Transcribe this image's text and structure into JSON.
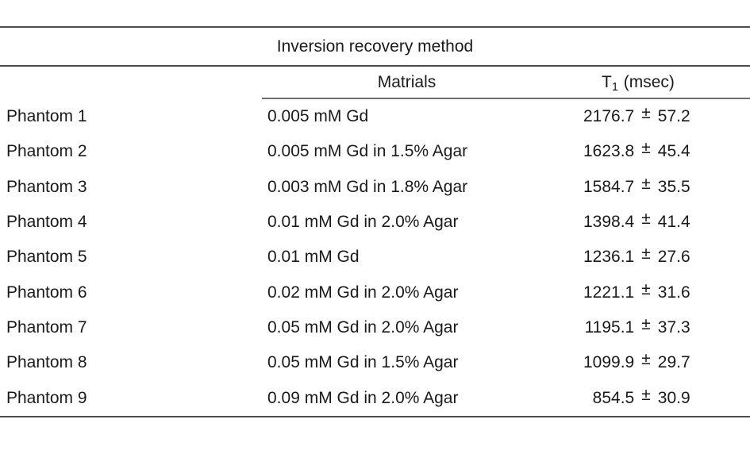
{
  "figure": {
    "title": "Inversion recovery method",
    "columns": {
      "materials": "Matrials",
      "t1_prefix": "T",
      "t1_sub": "1",
      "t1_suffix": "(msec)"
    },
    "plus_minus": "±",
    "rows": [
      {
        "phantom": "Phantom 1",
        "material": "0.005 mM Gd",
        "value": "2176.7",
        "error": "57.2"
      },
      {
        "phantom": "Phantom 2",
        "material": "0.005 mM Gd in 1.5% Agar",
        "value": "1623.8",
        "error": "45.4"
      },
      {
        "phantom": "Phantom 3",
        "material": "0.003 mM Gd in 1.8% Agar",
        "value": "1584.7",
        "error": "35.5"
      },
      {
        "phantom": "Phantom 4",
        "material": "0.01 mM Gd in 2.0% Agar",
        "value": "1398.4",
        "error": "41.4"
      },
      {
        "phantom": "Phantom 5",
        "material": "0.01 mM Gd",
        "value": "1236.1",
        "error": "27.6"
      },
      {
        "phantom": "Phantom 6",
        "material": "0.02 mM Gd in 2.0% Agar",
        "value": "1221.1",
        "error": "31.6"
      },
      {
        "phantom": "Phantom 7",
        "material": "0.05 mM Gd in 2.0% Agar",
        "value": "1195.1",
        "error": "37.3"
      },
      {
        "phantom": "Phantom 8",
        "material": "0.05 mM Gd in 1.5% Agar",
        "value": "1099.9",
        "error": "29.7"
      },
      {
        "phantom": "Phantom 9",
        "material": "0.09 mM Gd in 2.0% Agar",
        "value": "854.5",
        "error": "30.9"
      }
    ]
  },
  "chart_data": {
    "type": "table",
    "title": "Inversion recovery method",
    "columns": [
      "",
      "Matrials",
      "T1 (msec)"
    ],
    "rows": [
      [
        "Phantom 1",
        "0.005 mM Gd",
        "2176.7 ± 57.2"
      ],
      [
        "Phantom 2",
        "0.005 mM Gd in 1.5% Agar",
        "1623.8 ± 45.4"
      ],
      [
        "Phantom 3",
        "0.003 mM Gd in 1.8% Agar",
        "1584.7 ± 35.5"
      ],
      [
        "Phantom 4",
        "0.01 mM Gd in 2.0% Agar",
        "1398.4 ± 41.4"
      ],
      [
        "Phantom 5",
        "0.01 mM Gd",
        "1236.1 ± 27.6"
      ],
      [
        "Phantom 6",
        "0.02 mM Gd in 2.0% Agar",
        "1221.1 ± 31.6"
      ],
      [
        "Phantom 7",
        "0.05 mM Gd in 2.0% Agar",
        "1195.1 ± 37.3"
      ],
      [
        "Phantom 8",
        "0.05 mM Gd in 1.5% Agar",
        "1099.9 ± 29.7"
      ],
      [
        "Phantom 9",
        "0.09 mM Gd in 2.0% Agar",
        "854.5 ± 30.9"
      ]
    ]
  },
  "colors": {
    "background": "#ffffff",
    "text": "#1a1a1a",
    "rule_dark": "#4d4d4d",
    "rule_light": "#6e6e6e"
  }
}
